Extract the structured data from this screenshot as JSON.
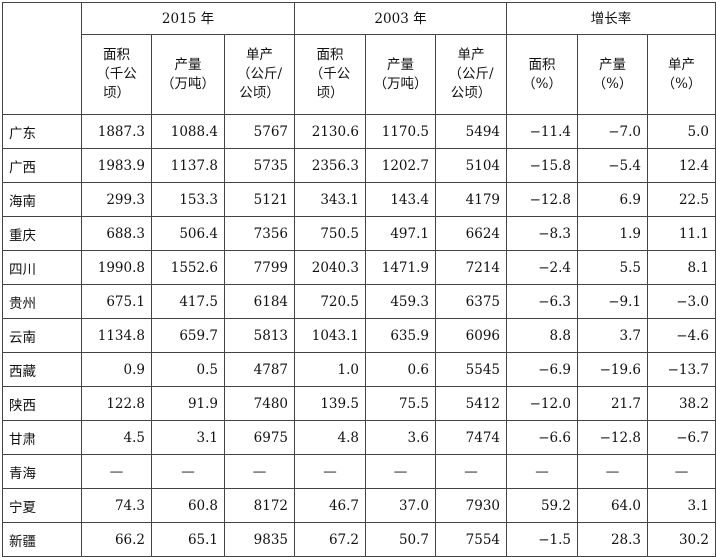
{
  "groups": [
    {
      "label": "2015 年"
    },
    {
      "label": "2003 年"
    },
    {
      "label": "增长率"
    }
  ],
  "subheaders": [
    [
      "面积",
      "（千公顷）"
    ],
    [
      "产量",
      "（万吨）"
    ],
    [
      "单产",
      "（公斤/",
      "公顷）"
    ],
    [
      "面积",
      "（千公顷）"
    ],
    [
      "产量",
      "（万吨）"
    ],
    [
      "单产",
      "（公斤/",
      "公顷）"
    ],
    [
      "面积",
      "（%）"
    ],
    [
      "产量",
      "（%）"
    ],
    [
      "单产",
      "（%）"
    ]
  ],
  "rows": [
    {
      "region": "广东",
      "values": [
        "1887.3",
        "1088.4",
        "5767",
        "2130.6",
        "1170.5",
        "5494",
        "−11.4",
        "−7.0",
        "5.0"
      ]
    },
    {
      "region": "广西",
      "values": [
        "1983.9",
        "1137.8",
        "5735",
        "2356.3",
        "1202.7",
        "5104",
        "−15.8",
        "−5.4",
        "12.4"
      ]
    },
    {
      "region": "海南",
      "values": [
        "299.3",
        "153.3",
        "5121",
        "343.1",
        "143.4",
        "4179",
        "−12.8",
        "6.9",
        "22.5"
      ]
    },
    {
      "region": "重庆",
      "values": [
        "688.3",
        "506.4",
        "7356",
        "750.5",
        "497.1",
        "6624",
        "−8.3",
        "1.9",
        "11.1"
      ]
    },
    {
      "region": "四川",
      "values": [
        "1990.8",
        "1552.6",
        "7799",
        "2040.3",
        "1471.9",
        "7214",
        "−2.4",
        "5.5",
        "8.1"
      ]
    },
    {
      "region": "贵州",
      "values": [
        "675.1",
        "417.5",
        "6184",
        "720.5",
        "459.3",
        "6375",
        "−6.3",
        "−9.1",
        "−3.0"
      ]
    },
    {
      "region": "云南",
      "values": [
        "1134.8",
        "659.7",
        "5813",
        "1043.1",
        "635.9",
        "6096",
        "8.8",
        "3.7",
        "−4.6"
      ]
    },
    {
      "region": "西藏",
      "values": [
        "0.9",
        "0.5",
        "4787",
        "1.0",
        "0.6",
        "5545",
        "−6.9",
        "−19.6",
        "−13.7"
      ]
    },
    {
      "region": "陕西",
      "values": [
        "122.8",
        "91.9",
        "7480",
        "139.5",
        "75.5",
        "5412",
        "−12.0",
        "21.7",
        "38.2"
      ]
    },
    {
      "region": "甘肃",
      "values": [
        "4.5",
        "3.1",
        "6975",
        "4.8",
        "3.6",
        "7474",
        "−6.6",
        "−12.8",
        "−6.7"
      ]
    },
    {
      "region": "青海",
      "values": [
        "—",
        "—",
        "—",
        "—",
        "—",
        "—",
        "—",
        "—",
        "—"
      ]
    },
    {
      "region": "宁夏",
      "values": [
        "74.3",
        "60.8",
        "8172",
        "46.7",
        "37.0",
        "7930",
        "59.2",
        "64.0",
        "3.1"
      ]
    },
    {
      "region": "新疆",
      "values": [
        "66.2",
        "65.1",
        "9835",
        "67.2",
        "50.7",
        "7554",
        "−1.5",
        "28.3",
        "30.2"
      ]
    }
  ]
}
